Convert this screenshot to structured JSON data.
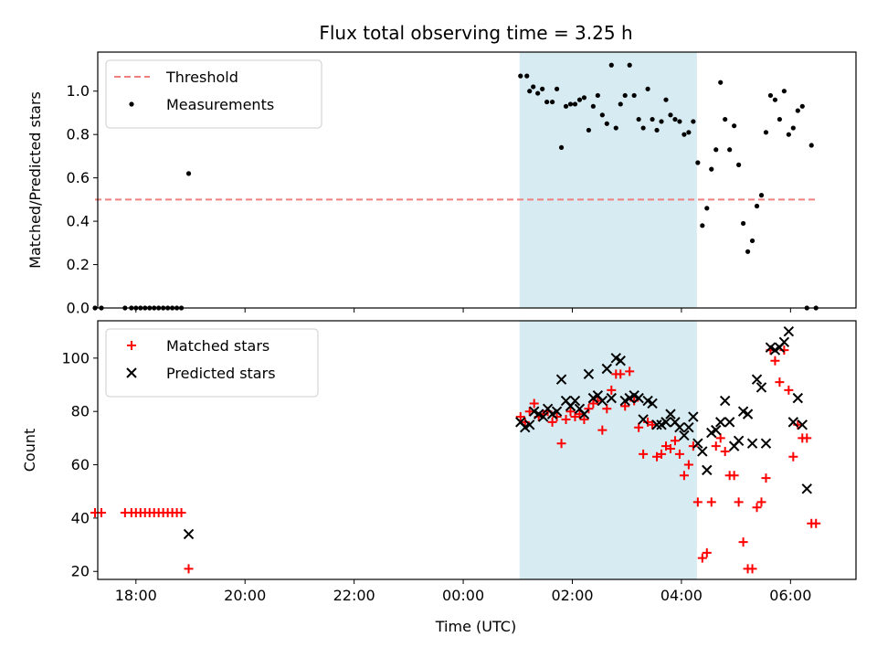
{
  "figure": {
    "title": "Flux total observing time = 3.25 h",
    "xlabel": "Time (UTC)"
  },
  "colors": {
    "threshold": "#f08080",
    "measurements": "#000000",
    "matched": "#ff0000",
    "predicted": "#000000",
    "span": "#add8e6"
  },
  "chart_data": [
    {
      "type": "scatter",
      "ylabel": "Matched/Predicted stars",
      "xlim": [
        "17:18",
        "07:12"
      ],
      "ylim": [
        0,
        1.18
      ],
      "yticks": [
        0.0,
        0.2,
        0.4,
        0.6,
        0.8,
        1.0
      ],
      "xticks": [
        "18:00",
        "20:00",
        "22:00",
        "00:00",
        "02:00",
        "04:00",
        "06:00"
      ],
      "legend": "top-left",
      "highlight_span": [
        "01:02",
        "04:17"
      ],
      "threshold": {
        "name": "Threshold",
        "value": 0.5,
        "x": [
          "17:15",
          "06:30"
        ]
      },
      "series": [
        {
          "name": "Measurements",
          "points": [
            [
              "17:15",
              0
            ],
            [
              "17:22",
              0
            ],
            [
              "17:48",
              0
            ],
            [
              "17:55",
              0
            ],
            [
              "18:00",
              0
            ],
            [
              "18:05",
              0
            ],
            [
              "18:10",
              0
            ],
            [
              "18:15",
              0
            ],
            [
              "18:20",
              0
            ],
            [
              "18:25",
              0
            ],
            [
              "18:30",
              0
            ],
            [
              "18:35",
              0
            ],
            [
              "18:40",
              0
            ],
            [
              "18:45",
              0
            ],
            [
              "18:50",
              0
            ],
            [
              "18:58",
              0.62
            ],
            [
              "01:03",
              1.07
            ],
            [
              "01:10",
              1.07
            ],
            [
              "01:13",
              1.0
            ],
            [
              "01:17",
              1.02
            ],
            [
              "01:22",
              0.99
            ],
            [
              "01:27",
              1.01
            ],
            [
              "01:32",
              0.95
            ],
            [
              "01:38",
              0.95
            ],
            [
              "01:43",
              1.01
            ],
            [
              "01:48",
              0.74
            ],
            [
              "01:53",
              0.93
            ],
            [
              "01:58",
              0.94
            ],
            [
              "02:03",
              0.94
            ],
            [
              "02:08",
              0.96
            ],
            [
              "02:13",
              0.97
            ],
            [
              "02:18",
              0.82
            ],
            [
              "02:23",
              0.93
            ],
            [
              "02:28",
              0.98
            ],
            [
              "02:33",
              0.89
            ],
            [
              "02:38",
              0.85
            ],
            [
              "02:43",
              1.12
            ],
            [
              "02:48",
              0.83
            ],
            [
              "02:53",
              0.94
            ],
            [
              "02:58",
              0.98
            ],
            [
              "03:03",
              1.12
            ],
            [
              "03:08",
              0.98
            ],
            [
              "03:13",
              0.87
            ],
            [
              "03:18",
              0.83
            ],
            [
              "03:23",
              1.01
            ],
            [
              "03:28",
              0.87
            ],
            [
              "03:33",
              0.82
            ],
            [
              "03:38",
              0.86
            ],
            [
              "03:43",
              0.96
            ],
            [
              "03:48",
              0.89
            ],
            [
              "03:53",
              0.87
            ],
            [
              "03:58",
              0.86
            ],
            [
              "04:03",
              0.8
            ],
            [
              "04:08",
              0.81
            ],
            [
              "04:13",
              0.86
            ],
            [
              "04:18",
              0.67
            ],
            [
              "04:23",
              0.38
            ],
            [
              "04:28",
              0.46
            ],
            [
              "04:33",
              0.64
            ],
            [
              "04:38",
              0.73
            ],
            [
              "04:43",
              1.04
            ],
            [
              "04:48",
              0.87
            ],
            [
              "04:53",
              0.73
            ],
            [
              "04:58",
              0.84
            ],
            [
              "05:03",
              0.66
            ],
            [
              "05:08",
              0.39
            ],
            [
              "05:13",
              0.26
            ],
            [
              "05:18",
              0.31
            ],
            [
              "05:23",
              0.47
            ],
            [
              "05:28",
              0.52
            ],
            [
              "05:33",
              0.81
            ],
            [
              "05:38",
              0.98
            ],
            [
              "05:43",
              0.96
            ],
            [
              "05:48",
              0.87
            ],
            [
              "05:53",
              1.0
            ],
            [
              "05:58",
              0.8
            ],
            [
              "06:03",
              0.83
            ],
            [
              "06:08",
              0.91
            ],
            [
              "06:13",
              0.93
            ],
            [
              "06:18",
              0.0
            ],
            [
              "06:23",
              0.75
            ],
            [
              "06:28",
              0.0
            ]
          ]
        }
      ]
    },
    {
      "type": "scatter",
      "ylabel": "Count",
      "xlim": [
        "17:18",
        "07:12"
      ],
      "ylim": [
        17,
        114
      ],
      "yticks": [
        20,
        40,
        60,
        80,
        100
      ],
      "xticks": [
        "18:00",
        "20:00",
        "22:00",
        "00:00",
        "02:00",
        "04:00",
        "06:00"
      ],
      "legend": "top-left",
      "highlight_span": [
        "01:02",
        "04:17"
      ],
      "series": [
        {
          "name": "Matched stars",
          "marker": "plus",
          "points": [
            [
              "17:15",
              42
            ],
            [
              "17:22",
              42
            ],
            [
              "17:48",
              42
            ],
            [
              "17:55",
              42
            ],
            [
              "18:00",
              42
            ],
            [
              "18:05",
              42
            ],
            [
              "18:10",
              42
            ],
            [
              "18:15",
              42
            ],
            [
              "18:20",
              42
            ],
            [
              "18:25",
              42
            ],
            [
              "18:30",
              42
            ],
            [
              "18:35",
              42
            ],
            [
              "18:40",
              42
            ],
            [
              "18:45",
              42
            ],
            [
              "18:50",
              42
            ],
            [
              "18:58",
              21
            ],
            [
              "01:03",
              78
            ],
            [
              "01:08",
              76
            ],
            [
              "01:13",
              80
            ],
            [
              "01:18",
              83
            ],
            [
              "01:23",
              78
            ],
            [
              "01:28",
              79
            ],
            [
              "01:33",
              80
            ],
            [
              "01:38",
              76
            ],
            [
              "01:43",
              78
            ],
            [
              "01:48",
              68
            ],
            [
              "01:53",
              77
            ],
            [
              "01:58",
              80
            ],
            [
              "02:03",
              78
            ],
            [
              "02:08",
              79
            ],
            [
              "02:13",
              77
            ],
            [
              "02:18",
              81
            ],
            [
              "02:23",
              83
            ],
            [
              "02:28",
              84
            ],
            [
              "02:33",
              73
            ],
            [
              "02:38",
              81
            ],
            [
              "02:43",
              88
            ],
            [
              "02:48",
              94
            ],
            [
              "02:53",
              94
            ],
            [
              "02:58",
              82
            ],
            [
              "03:03",
              95
            ],
            [
              "03:08",
              84
            ],
            [
              "03:13",
              74
            ],
            [
              "03:18",
              64
            ],
            [
              "03:23",
              76
            ],
            [
              "03:28",
              75
            ],
            [
              "03:33",
              63
            ],
            [
              "03:38",
              64
            ],
            [
              "03:43",
              67
            ],
            [
              "03:48",
              66
            ],
            [
              "03:53",
              69
            ],
            [
              "03:58",
              64
            ],
            [
              "04:03",
              56
            ],
            [
              "04:08",
              60
            ],
            [
              "04:13",
              67
            ],
            [
              "04:18",
              46
            ],
            [
              "04:23",
              25
            ],
            [
              "04:28",
              27
            ],
            [
              "04:33",
              46
            ],
            [
              "04:38",
              67
            ],
            [
              "04:43",
              70
            ],
            [
              "04:48",
              65
            ],
            [
              "04:53",
              56
            ],
            [
              "04:58",
              56
            ],
            [
              "05:03",
              46
            ],
            [
              "05:08",
              31
            ],
            [
              "05:13",
              21
            ],
            [
              "05:18",
              21
            ],
            [
              "05:23",
              44
            ],
            [
              "05:28",
              46
            ],
            [
              "05:33",
              55
            ],
            [
              "05:38",
              103
            ],
            [
              "05:43",
              99
            ],
            [
              "05:48",
              91
            ],
            [
              "05:53",
              103
            ],
            [
              "05:58",
              88
            ],
            [
              "06:03",
              63
            ],
            [
              "06:08",
              75
            ],
            [
              "06:13",
              70
            ],
            [
              "06:18",
              70
            ],
            [
              "06:23",
              38
            ],
            [
              "06:28",
              38
            ]
          ]
        },
        {
          "name": "Predicted stars",
          "marker": "x",
          "points": [
            [
              "18:58",
              34
            ],
            [
              "01:03",
              76
            ],
            [
              "01:08",
              74
            ],
            [
              "01:13",
              75
            ],
            [
              "01:18",
              80
            ],
            [
              "01:23",
              79
            ],
            [
              "01:28",
              78
            ],
            [
              "01:33",
              81
            ],
            [
              "01:38",
              79
            ],
            [
              "01:43",
              80
            ],
            [
              "01:48",
              92
            ],
            [
              "01:53",
              84
            ],
            [
              "01:58",
              82
            ],
            [
              "02:03",
              84
            ],
            [
              "02:08",
              81
            ],
            [
              "02:13",
              79
            ],
            [
              "02:18",
              94
            ],
            [
              "02:23",
              85
            ],
            [
              "02:28",
              86
            ],
            [
              "02:33",
              84
            ],
            [
              "02:38",
              96
            ],
            [
              "02:43",
              85
            ],
            [
              "02:48",
              100
            ],
            [
              "02:53",
              99
            ],
            [
              "02:58",
              84
            ],
            [
              "03:03",
              85
            ],
            [
              "03:08",
              86
            ],
            [
              "03:13",
              85
            ],
            [
              "03:18",
              77
            ],
            [
              "03:23",
              84
            ],
            [
              "03:28",
              83
            ],
            [
              "03:33",
              75
            ],
            [
              "03:38",
              75
            ],
            [
              "03:43",
              76
            ],
            [
              "03:48",
              79
            ],
            [
              "03:53",
              76
            ],
            [
              "03:58",
              74
            ],
            [
              "04:03",
              71
            ],
            [
              "04:08",
              74
            ],
            [
              "04:13",
              78
            ],
            [
              "04:18",
              68
            ],
            [
              "04:23",
              65
            ],
            [
              "04:28",
              58
            ],
            [
              "04:33",
              72
            ],
            [
              "04:38",
              73
            ],
            [
              "04:43",
              76
            ],
            [
              "04:48",
              84
            ],
            [
              "04:53",
              76
            ],
            [
              "04:58",
              67
            ],
            [
              "05:03",
              69
            ],
            [
              "05:08",
              80
            ],
            [
              "05:13",
              79
            ],
            [
              "05:18",
              68
            ],
            [
              "05:23",
              92
            ],
            [
              "05:28",
              89
            ],
            [
              "05:33",
              68
            ],
            [
              "05:38",
              104
            ],
            [
              "05:43",
              103
            ],
            [
              "05:48",
              104
            ],
            [
              "05:53",
              106
            ],
            [
              "05:58",
              110
            ],
            [
              "06:03",
              76
            ],
            [
              "06:08",
              85
            ],
            [
              "06:13",
              75
            ],
            [
              "06:18",
              51
            ]
          ]
        }
      ]
    }
  ]
}
